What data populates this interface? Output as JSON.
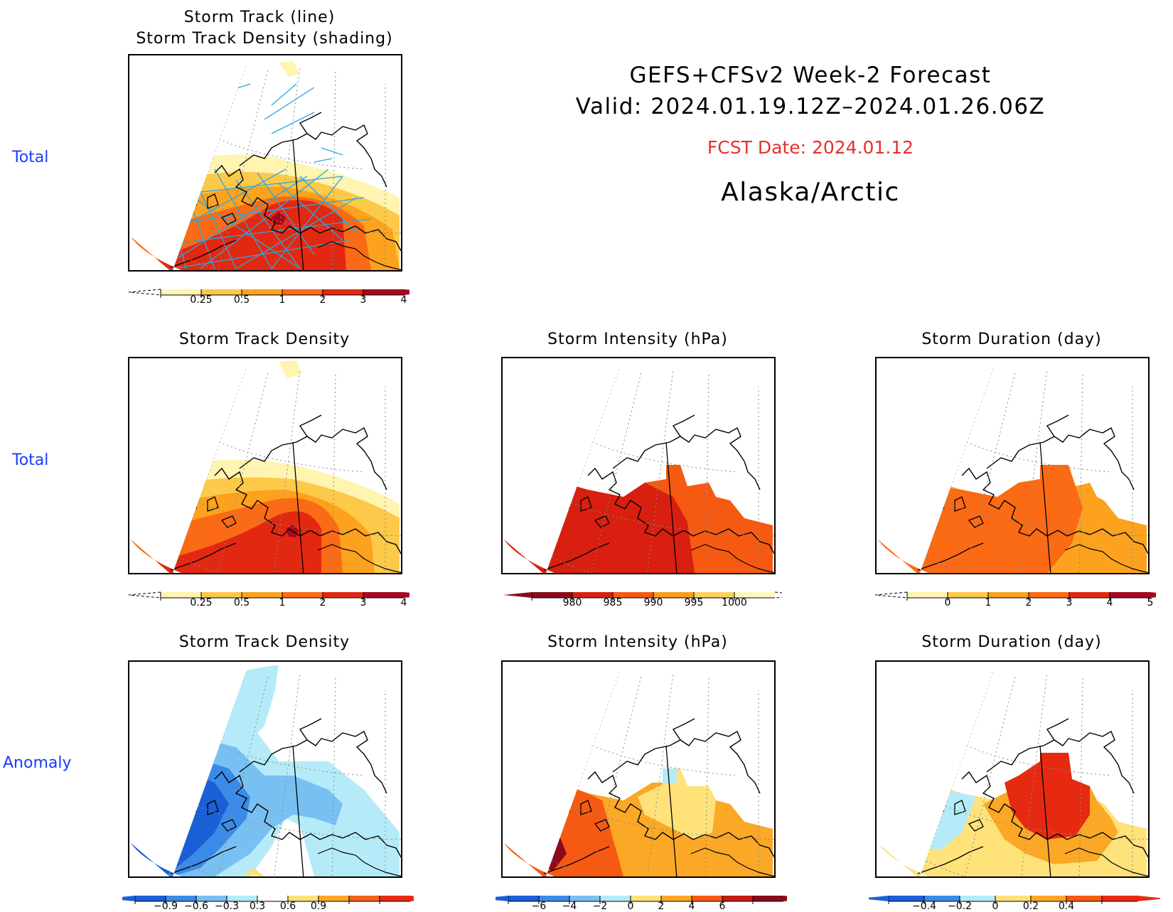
{
  "header": {
    "line1": "GEFS+CFSv2 Week-2 Forecast",
    "line2": "Valid: 2024.01.19.12Z–2024.01.26.06Z",
    "fcst_date": "FCST Date: 2024.01.12",
    "region": "Alaska/Arctic",
    "fcst_color": "#e8302a"
  },
  "rows": {
    "row1_label": "Total",
    "row2_label": "Total",
    "row3_label": "Anomaly"
  },
  "panels": {
    "p1": {
      "title_a": "Storm Track (line)",
      "title_b": "Storm Track Density (shading)"
    },
    "p2": {
      "title": "Storm Track Density"
    },
    "p3": {
      "title": "Storm Intensity (hPa)"
    },
    "p4": {
      "title": "Storm Duration (day)"
    },
    "p5": {
      "title": "Storm Track Density"
    },
    "p6": {
      "title": "Storm Intensity (hPa)"
    },
    "p7": {
      "title": "Storm Duration (day)"
    }
  },
  "colorbars": {
    "density": {
      "labels": [
        "0.25",
        "0.5",
        "1",
        "2",
        "3",
        "4"
      ],
      "colors": [
        "#fff4b0",
        "#fdc94a",
        "#fca21e",
        "#fb6a14",
        "#e32812",
        "#a5081f"
      ]
    },
    "intensity": {
      "labels": [
        "980",
        "985",
        "990",
        "995",
        "1000"
      ],
      "colors": [
        "#8b0b1a",
        "#d81f10",
        "#f65a12",
        "#fa9d1d",
        "#fdd160",
        "#fff7c0"
      ]
    },
    "duration": {
      "labels": [
        "0",
        "1",
        "2",
        "3",
        "4",
        "5"
      ],
      "colors": [
        "#fff4b0",
        "#fdc94a",
        "#fca21e",
        "#fb6a14",
        "#e32812",
        "#a5081f"
      ]
    },
    "density_anom": {
      "labels": [
        "−0.9",
        "−0.6",
        "−0.3",
        "0.3",
        "0.6",
        "0.9"
      ],
      "colors": [
        "#1b5fd6",
        "#3c8ae8",
        "#79c0f2",
        "#b5ebf8",
        "#ffffff",
        "#fde27a",
        "#fba826",
        "#f26317",
        "#e62a12"
      ]
    },
    "intensity_anom": {
      "labels": [
        "−6",
        "−4",
        "−2",
        "0",
        "2",
        "4",
        "6"
      ],
      "colors": [
        "#1b5fd6",
        "#3c8ae8",
        "#79c0f2",
        "#b5ebf8",
        "#ffe27a",
        "#fba826",
        "#f65a12",
        "#c61b14",
        "#8b0b1a"
      ]
    },
    "duration_anom": {
      "labels": [
        "−0.4",
        "−0.2",
        "0",
        "0.2",
        "0.4"
      ],
      "colors": [
        "#1b5fd6",
        "#3c8ae8",
        "#b5ebf8",
        "#ffe27a",
        "#fba826",
        "#f65a12",
        "#e62a12"
      ]
    },
    "track_line_color": "#2aa7e0"
  }
}
